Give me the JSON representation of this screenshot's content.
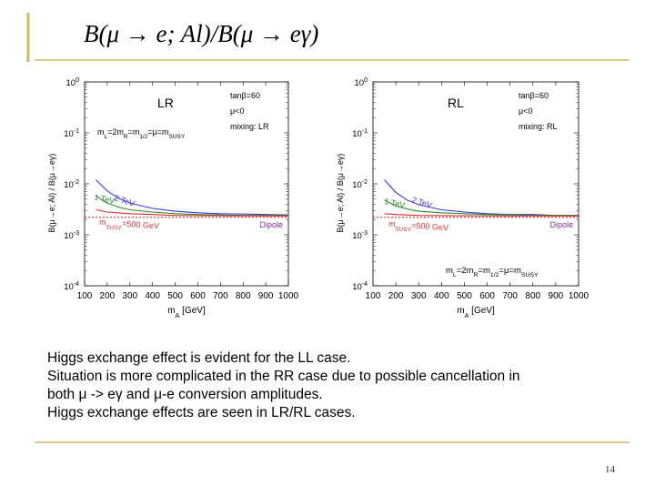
{
  "slide": {
    "title": "B(μ → e; Al)/B(μ → eγ)",
    "page_number": "14",
    "accent_color": "#d4b86a",
    "bullets": [
      "Higgs exchange effect is evident for the LL case.",
      "Situation is more complicated in the RR case due to possible cancellation in",
      "both μ -> eγ and μ-e conversion amplitudes.",
      "Higgs exchange effects are seen in LR/RL cases."
    ]
  },
  "chart_data": [
    {
      "type": "line",
      "panel_label": "LR",
      "xlabel": "mA [GeV]",
      "ylabel": "B(μ→e; Al) / B(μ→eγ)",
      "xlim": [
        100,
        1000
      ],
      "ylim": [
        0.0001,
        1
      ],
      "log_y": true,
      "grid": false,
      "x_ticks": [
        "100",
        "200",
        "300",
        "400",
        "500",
        "600",
        "700",
        "800",
        "900",
        "1000"
      ],
      "y_ticks": [
        {
          "value": 1,
          "label": "10^0"
        },
        {
          "value": 0.1,
          "label": "10^-1"
        },
        {
          "value": 0.01,
          "label": "10^-2"
        },
        {
          "value": 0.001,
          "label": "10^-3"
        },
        {
          "value": 0.0001,
          "label": "10^-4"
        }
      ],
      "params": [
        "tanβ=60",
        "μ<0",
        "mixing: LR"
      ],
      "mass_relation": "mL=2mR=m1/2=μ=mSUSY",
      "series": [
        {
          "label": "2 TeV",
          "color": "#3a3ad0",
          "x": [
            150,
            200,
            250,
            300,
            400,
            500,
            600,
            700,
            800,
            900,
            1000
          ],
          "y": [
            0.012,
            0.0073,
            0.0052,
            0.0042,
            0.0033,
            0.0029,
            0.0027,
            0.0026,
            0.00255,
            0.0025,
            0.00245
          ]
        },
        {
          "label": "1 TeV",
          "color": "#2c8a2c",
          "x": [
            150,
            200,
            250,
            300,
            400,
            500,
            600,
            700,
            800,
            900,
            1000
          ],
          "y": [
            0.0058,
            0.0042,
            0.0035,
            0.0031,
            0.0028,
            0.0026,
            0.0025,
            0.00245,
            0.0024,
            0.0024,
            0.0024
          ]
        },
        {
          "label": "mSUSY=500 GeV",
          "color": "#d83030",
          "x": [
            150,
            200,
            300,
            400,
            500,
            600,
            700,
            800,
            900,
            1000
          ],
          "y": [
            0.0031,
            0.0028,
            0.0026,
            0.0025,
            0.0024,
            0.00238,
            0.00236,
            0.00235,
            0.00234,
            0.00234
          ]
        },
        {
          "label": "Dipole",
          "color": "#d83030",
          "dashed": true,
          "x": [
            100,
            1000
          ],
          "y": [
            0.0022,
            0.0022
          ]
        }
      ]
    },
    {
      "type": "line",
      "panel_label": "RL",
      "xlabel": "mA [GeV]",
      "ylabel": "B(μ→e; Al) / B(μ→eγ)",
      "xlim": [
        100,
        1000
      ],
      "ylim": [
        0.0001,
        1
      ],
      "log_y": true,
      "grid": false,
      "x_ticks": [
        "100",
        "200",
        "300",
        "400",
        "500",
        "600",
        "700",
        "800",
        "900",
        "1000"
      ],
      "y_ticks": [
        {
          "value": 1,
          "label": "10^0"
        },
        {
          "value": 0.1,
          "label": "10^-1"
        },
        {
          "value": 0.01,
          "label": "10^-2"
        },
        {
          "value": 0.001,
          "label": "10^-3"
        },
        {
          "value": 0.0001,
          "label": "10^-4"
        }
      ],
      "params": [
        "tanβ=60",
        "μ<0",
        "mixing: RL"
      ],
      "mass_relation": "mL=2mR=m1/2=μ=mSUSY",
      "series": [
        {
          "label": "2 TeV",
          "color": "#3a3ad0",
          "x": [
            150,
            200,
            250,
            300,
            400,
            500,
            600,
            700,
            800,
            900,
            1000
          ],
          "y": [
            0.012,
            0.0068,
            0.0048,
            0.0039,
            0.0031,
            0.0028,
            0.0026,
            0.0025,
            0.0025,
            0.0024,
            0.0024
          ]
        },
        {
          "label": "1 TeV",
          "color": "#2c8a2c",
          "x": [
            150,
            200,
            250,
            300,
            400,
            500,
            600,
            700,
            800,
            900,
            1000
          ],
          "y": [
            0.0048,
            0.0037,
            0.0032,
            0.0029,
            0.0027,
            0.0026,
            0.0025,
            0.00245,
            0.0024,
            0.0024,
            0.0024
          ]
        },
        {
          "label": "mSUSY=500 GeV",
          "color": "#d83030",
          "x": [
            150,
            200,
            300,
            400,
            500,
            600,
            700,
            800,
            900,
            1000
          ],
          "y": [
            0.0026,
            0.0025,
            0.0024,
            0.00238,
            0.00236,
            0.00235,
            0.00234,
            0.00234,
            0.00234,
            0.00234
          ]
        },
        {
          "label": "Dipole",
          "color": "#d83030",
          "dashed": true,
          "x": [
            100,
            1000
          ],
          "y": [
            0.0022,
            0.0022
          ]
        }
      ]
    }
  ]
}
